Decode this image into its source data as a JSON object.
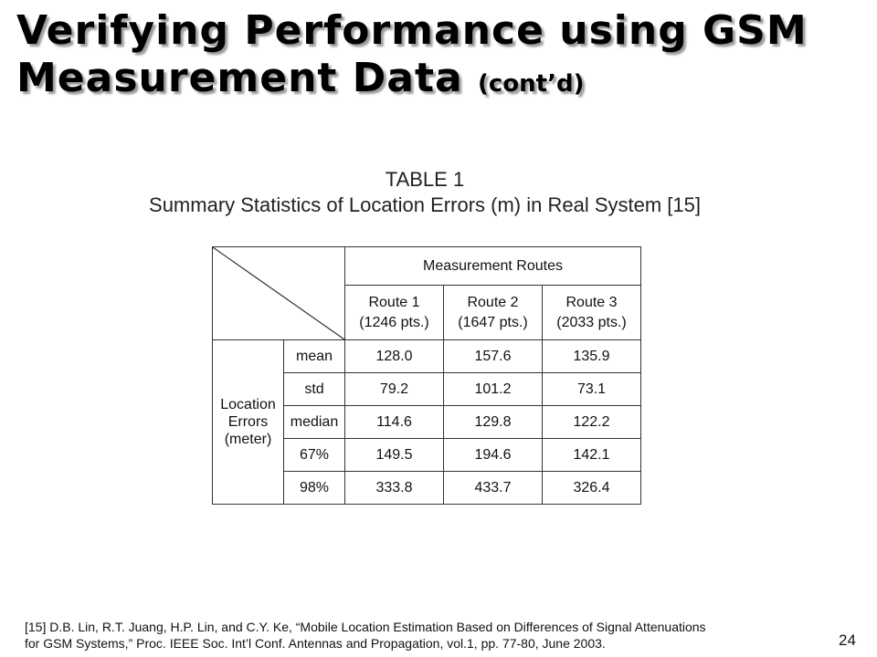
{
  "slide": {
    "title_line1": "Verifying Performance using GSM",
    "title_line2": "Measurement Data",
    "title_suffix": "(cont’d)",
    "page_number": "24"
  },
  "table": {
    "caption_label": "TABLE 1",
    "caption_text": "Summary Statistics of Location Errors (m) in Real System [15]",
    "group_header": "Measurement Routes",
    "routes": [
      {
        "name": "Route 1",
        "points": "(1246 pts.)"
      },
      {
        "name": "Route 2",
        "points": "(1647 pts.)"
      },
      {
        "name": "Route 3",
        "points": "(2033 pts.)"
      }
    ],
    "row_group_label": [
      "Location",
      "Errors",
      "(meter)"
    ],
    "rows": [
      {
        "stat": "mean",
        "values": [
          "128.0",
          "157.6",
          "135.9"
        ]
      },
      {
        "stat": "std",
        "values": [
          "79.2",
          "101.2",
          "73.1"
        ]
      },
      {
        "stat": "median",
        "values": [
          "114.6",
          "129.8",
          "122.2"
        ]
      },
      {
        "stat": "67%",
        "values": [
          "149.5",
          "194.6",
          "142.1"
        ]
      },
      {
        "stat": "98%",
        "values": [
          "333.8",
          "433.7",
          "326.4"
        ]
      }
    ]
  },
  "footnote": {
    "line1": "[15] D.B. Lin, R.T. Juang, H.P. Lin, and C.Y. Ke, “Mobile Location Estimation Based on Differences of Signal Attenuations",
    "line2": "for GSM Systems,” Proc. IEEE Soc. Int’l Conf. Antennas and Propagation, vol.1, pp. 77-80, June 2003."
  }
}
